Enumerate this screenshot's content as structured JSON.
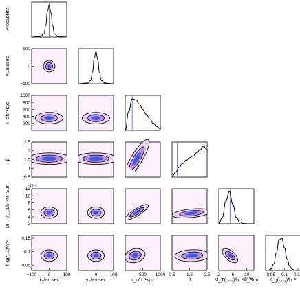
{
  "chart_data": {
    "type": "corner",
    "parameters": [
      {
        "key": "x0",
        "label": "x₀/arcsec",
        "ylabel": "Probability",
        "range": [
          -100,
          100
        ]
      },
      {
        "key": "y0",
        "label": "y₀/arcsec",
        "ylabel": "y₀/arcsec",
        "range": [
          -100,
          100
        ]
      },
      {
        "key": "rc",
        "label": "r_c/h⁻¹kpc",
        "ylabel": "r_c/h⁻¹kpc",
        "range": [
          0,
          1000
        ]
      },
      {
        "key": "beta",
        "label": "β",
        "ylabel": "β",
        "range": [
          0.5,
          2.5
        ]
      },
      {
        "key": "M",
        "label": "M_T(r₂₀₀)/h⁻¹M_Sun",
        "ylabel": "M_T(r₂₀₀)/h⁻¹M_Sun",
        "range": [
          2,
          12
        ],
        "multiplier": "×10¹⁴"
      },
      {
        "key": "fg",
        "label": "f_g(r₂₀₀)/h⁻¹",
        "ylabel": "f_g(r₂₀₀)/h⁻¹",
        "range": [
          0.03,
          0.16
        ]
      }
    ],
    "x_ticks": [
      {
        "values": [
          -100,
          0,
          100
        ],
        "labels": [
          "−100",
          "0",
          "100"
        ]
      },
      {
        "values": [
          -100,
          0,
          100
        ],
        "labels": [
          "",
          "0",
          "100"
        ]
      },
      {
        "values": [
          500,
          1000
        ],
        "labels": [
          "500",
          "1000"
        ]
      },
      {
        "values": [
          0.5,
          1.5,
          2.5
        ],
        "labels": [
          "0.5",
          "1.5",
          "2.5"
        ]
      },
      {
        "values": [
          2,
          6,
          10
        ],
        "labels": [
          "2",
          "6",
          "10"
        ]
      },
      {
        "values": [
          0.05,
          0.1,
          0.15
        ],
        "labels": [
          "0.05",
          "0.1",
          "0.15"
        ]
      }
    ],
    "y_ticks": [
      null,
      {
        "values": [
          -100,
          0,
          100
        ],
        "labels": [
          "−100",
          "0",
          "100"
        ]
      },
      {
        "values": [
          200,
          400,
          600,
          800,
          1000
        ],
        "labels": [
          "200",
          "400",
          "600",
          "800",
          "1000"
        ]
      },
      {
        "values": [
          0.5,
          1,
          1.5,
          2,
          2.5
        ],
        "labels": [
          "0.5",
          "1",
          "1.5",
          "2",
          "2.5"
        ]
      },
      {
        "values": [
          2,
          4,
          6,
          8,
          10,
          12
        ],
        "labels": [
          "2",
          "4",
          "6",
          "8",
          "10",
          "12"
        ]
      },
      {
        "values": [
          0.05,
          0.1,
          0.15
        ],
        "labels": [
          "0.05",
          "0.1",
          "0.15"
        ]
      }
    ],
    "true_values": {
      "x0": 0,
      "y0": 0,
      "rc": 200,
      "beta": 0.8,
      "M": 5.2,
      "fg": 0.08
    },
    "marginals": [
      {
        "param": "x0",
        "x": [
          -100,
          -50,
          -30,
          -20,
          -10,
          0,
          10,
          20,
          30,
          50,
          100
        ],
        "density": [
          0,
          0.02,
          0.1,
          0.35,
          0.8,
          1.0,
          0.75,
          0.35,
          0.1,
          0.02,
          0
        ]
      },
      {
        "param": "y0",
        "x": [
          -100,
          -50,
          -30,
          -20,
          -10,
          0,
          10,
          20,
          30,
          50,
          100
        ],
        "density": [
          0,
          0.02,
          0.1,
          0.35,
          0.8,
          1.0,
          0.75,
          0.35,
          0.1,
          0.02,
          0
        ]
      },
      {
        "param": "rc",
        "x": [
          0,
          100,
          200,
          300,
          400,
          500,
          600,
          700,
          800,
          900,
          1000
        ],
        "density": [
          0,
          0.6,
          0.98,
          0.95,
          0.82,
          0.65,
          0.5,
          0.36,
          0.22,
          0.12,
          0.05
        ]
      },
      {
        "param": "beta",
        "x": [
          0.5,
          0.7,
          0.9,
          1.1,
          1.3,
          1.5,
          1.7,
          1.9,
          2.1,
          2.3,
          2.5
        ],
        "density": [
          0,
          0.15,
          0.3,
          0.42,
          0.52,
          0.6,
          0.65,
          0.75,
          0.85,
          0.95,
          0.85
        ]
      },
      {
        "param": "M",
        "x": [
          2,
          3,
          4,
          5,
          6,
          7,
          8,
          9,
          10,
          11,
          12
        ],
        "density": [
          0,
          0.2,
          0.7,
          1.0,
          0.6,
          0.2,
          0.05,
          0.01,
          0,
          0,
          0
        ]
      },
      {
        "param": "fg",
        "x": [
          0.03,
          0.04,
          0.05,
          0.06,
          0.07,
          0.08,
          0.09,
          0.1,
          0.11,
          0.12,
          0.13,
          0.14,
          0.16
        ],
        "density": [
          0,
          0.01,
          0.05,
          0.2,
          0.55,
          0.95,
          1.0,
          0.7,
          0.35,
          0.12,
          0.03,
          0.01,
          0
        ]
      }
    ],
    "joint_distributions": [
      {
        "x": "x0",
        "y": "y0",
        "center": [
          0,
          0
        ],
        "sigma": [
          15,
          15
        ],
        "corr": 0.0
      },
      {
        "x": "x0",
        "y": "rc",
        "center": [
          0,
          350
        ],
        "sigma": [
          15,
          180
        ],
        "corr": 0.0
      },
      {
        "x": "y0",
        "y": "rc",
        "center": [
          0,
          350
        ],
        "sigma": [
          15,
          180
        ],
        "corr": 0.0
      },
      {
        "x": "rc",
        "y": "rc",
        "center": [
          0,
          0
        ],
        "sigma": [
          1,
          1
        ],
        "corr": 0.0,
        "diagonal": true
      },
      {
        "x": "x0",
        "y": "beta",
        "center": [
          0,
          1.55
        ],
        "sigma": [
          15,
          0.55
        ],
        "corr": 0.0
      },
      {
        "x": "y0",
        "y": "beta",
        "center": [
          0,
          1.55
        ],
        "sigma": [
          15,
          0.55
        ],
        "corr": 0.0
      },
      {
        "x": "rc",
        "y": "beta",
        "center": [
          330,
          1.55
        ],
        "sigma": [
          160,
          0.5
        ],
        "corr": 0.85
      },
      {
        "x": "x0",
        "y": "M",
        "center": [
          0,
          5.2
        ],
        "sigma": [
          15,
          1.1
        ],
        "corr": 0.0
      },
      {
        "x": "y0",
        "y": "M",
        "center": [
          0,
          5.2
        ],
        "sigma": [
          15,
          1.1
        ],
        "corr": 0.0
      },
      {
        "x": "rc",
        "y": "M",
        "center": [
          330,
          5.3
        ],
        "sigma": [
          150,
          1.0
        ],
        "corr": 0.85
      },
      {
        "x": "beta",
        "y": "M",
        "center": [
          1.6,
          5.0
        ],
        "sigma": [
          0.5,
          0.6
        ],
        "corr": 0.4
      },
      {
        "x": "x0",
        "y": "fg",
        "center": [
          0,
          0.085
        ],
        "sigma": [
          15,
          0.014
        ],
        "corr": 0.0
      },
      {
        "x": "y0",
        "y": "fg",
        "center": [
          0,
          0.085
        ],
        "sigma": [
          15,
          0.014
        ],
        "corr": 0.0
      },
      {
        "x": "rc",
        "y": "fg",
        "center": [
          280,
          0.085
        ],
        "sigma": [
          130,
          0.012
        ],
        "corr": 0.2
      },
      {
        "x": "beta",
        "y": "fg",
        "center": [
          1.65,
          0.085
        ],
        "sigma": [
          0.45,
          0.01
        ],
        "corr": 0.1
      },
      {
        "x": "M",
        "y": "fg",
        "center": [
          5.2,
          0.085
        ],
        "sigma": [
          1.0,
          0.012
        ],
        "corr": -0.6
      }
    ]
  },
  "colors": {
    "panel_bg": "#fbf1fb",
    "outer_fill": "#ead4f3",
    "mid_fill": "#b98fe0",
    "core_fill": "#3f57ea",
    "contour": "#111111",
    "truth_line": "#6f86d8",
    "marginal_line": "#000000"
  }
}
